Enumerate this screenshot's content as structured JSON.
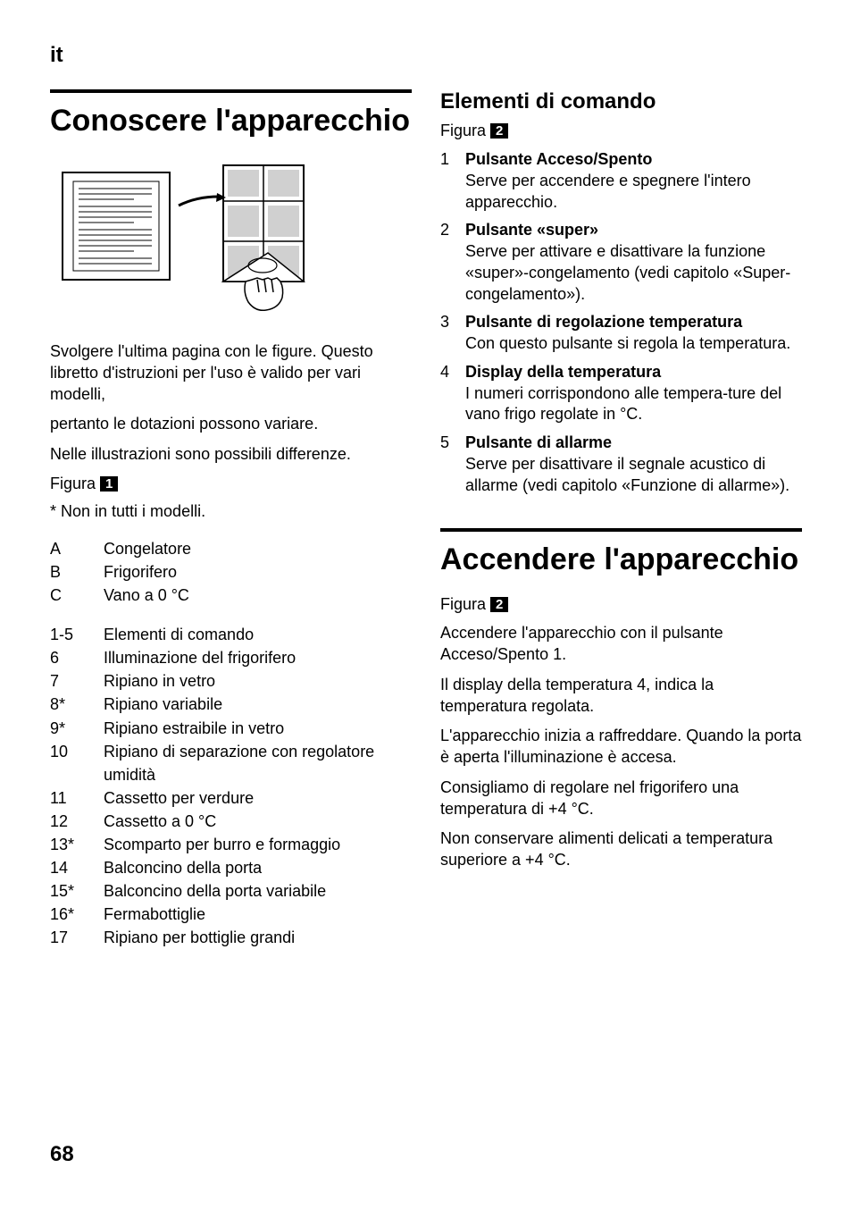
{
  "lang": "it",
  "page_number": "68",
  "left": {
    "title": "Conoscere l'apparecchio",
    "intro_paragraphs": [
      "Svolgere l'ultima pagina con le figure. Questo libretto d'istruzioni per l'uso è valido per vari modelli,",
      "pertanto le dotazioni possono variare.",
      "Nelle illustrazioni sono possibili differenze."
    ],
    "figura_label": "Figura",
    "figura_num": "1",
    "footnote": "* Non in tutti i modelli.",
    "legend_abc": [
      {
        "k": "A",
        "v": "Congelatore"
      },
      {
        "k": "B",
        "v": "Frigorifero"
      },
      {
        "k": "C",
        "v": "Vano a 0 °C"
      }
    ],
    "legend_nums": [
      {
        "k": "1-5",
        "v": "Elementi di comando"
      },
      {
        "k": "6",
        "v": "Illuminazione del frigorifero"
      },
      {
        "k": "7",
        "v": "Ripiano in vetro"
      },
      {
        "k": "8*",
        "v": "Ripiano variabile"
      },
      {
        "k": "9*",
        "v": "Ripiano estraibile in vetro"
      },
      {
        "k": "10",
        "v": "Ripiano di separazione con regolatore umidità"
      },
      {
        "k": "11",
        "v": "Cassetto per verdure"
      },
      {
        "k": "12",
        "v": "Cassetto a 0 °C"
      },
      {
        "k": "13*",
        "v": "Scomparto per burro e formaggio"
      },
      {
        "k": "14",
        "v": "Balconcino della porta"
      },
      {
        "k": "15*",
        "v": "Balconcino della porta variabile"
      },
      {
        "k": "16*",
        "v": "Fermabottiglie"
      },
      {
        "k": "17",
        "v": "Ripiano per bottiglie grandi"
      }
    ]
  },
  "right": {
    "section1": {
      "title": "Elementi di comando",
      "figura_label": "Figura",
      "figura_num": "2",
      "items": [
        {
          "n": "1",
          "label": "Pulsante Acceso/Spento",
          "desc": "Serve per accendere e spegnere l'intero apparecchio."
        },
        {
          "n": "2",
          "label": "Pulsante «super»",
          "desc": "Serve per attivare e disattivare la funzione «super»-congelamento (vedi capitolo «Super-congelamento»)."
        },
        {
          "n": "3",
          "label": "Pulsante di regolazione temperatura",
          "desc": "Con questo pulsante si regola la temperatura."
        },
        {
          "n": "4",
          "label": "Display della temperatura",
          "desc": "I numeri corrispondono alle tempera-ture del vano frigo regolate in °C."
        },
        {
          "n": "5",
          "label": "Pulsante di allarme",
          "desc": "Serve per disattivare il segnale acustico di allarme (vedi capitolo «Funzione di allarme»)."
        }
      ]
    },
    "section2": {
      "title": "Accendere l'apparecchio",
      "figura_label": "Figura",
      "figura_num": "2",
      "paragraphs": [
        "Accendere l'apparecchio con il pulsante Acceso/Spento 1.",
        "Il display della temperatura 4, indica la temperatura regolata.",
        "L'apparecchio inizia a raffreddare. Quando la porta è aperta l'illuminazione è accesa.",
        "Consigliamo di regolare nel frigorifero una temperatura di +4 °C.",
        "Non conservare alimenti delicati a temperatura superiore a +4 °C."
      ]
    }
  }
}
